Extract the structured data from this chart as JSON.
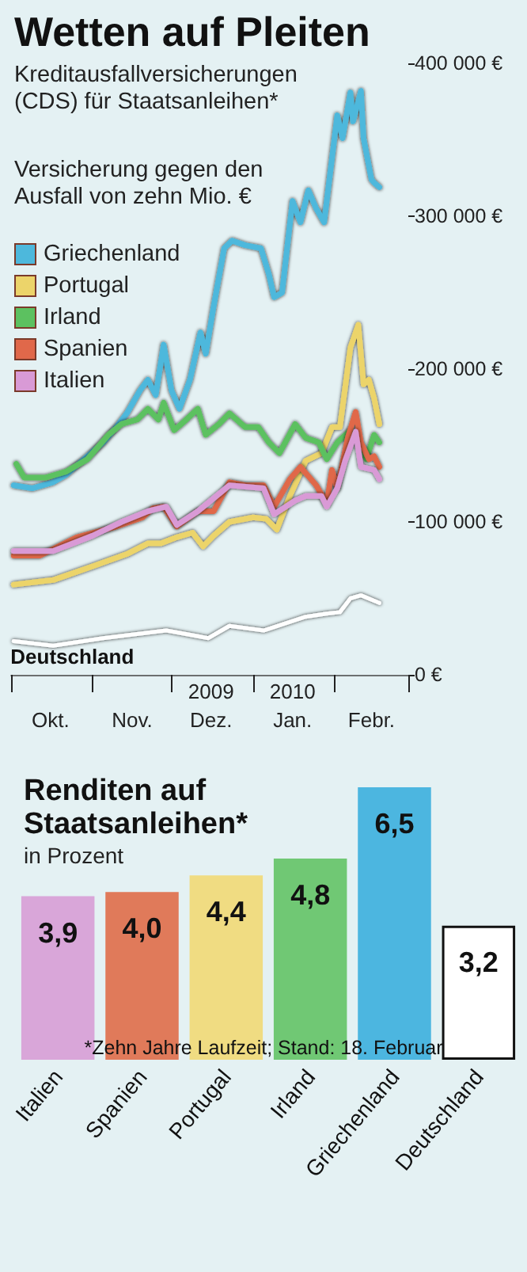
{
  "chart_data": [
    {
      "type": "line",
      "title": "Wetten auf Pleiten",
      "subtitle": "Kreditausfallversicherungen (CDS) für Staatsanleihen*",
      "ylabel": "Versicherung gegen den Ausfall von zehn Mio. €",
      "annotations": [
        "2009",
        "2010"
      ],
      "xticks": [
        {
          "value": "2009-10-01",
          "label": null
        },
        {
          "value": "2009-10-16",
          "label": "Okt."
        },
        {
          "value": "2009-11-01",
          "label": null
        },
        {
          "value": "2009-11-16",
          "label": "Nov."
        },
        {
          "value": "2009-12-01",
          "label": null
        },
        {
          "value": "2009-12-16",
          "label": "Dez."
        },
        {
          "value": "2010-01-01",
          "label": null
        },
        {
          "value": "2010-01-16",
          "label": "Jan."
        },
        {
          "value": "2010-02-01",
          "label": null
        },
        {
          "value": "2010-02-15",
          "label": "Febr."
        },
        {
          "value": "2010-03-01",
          "label": null
        }
      ],
      "xlim": [
        "2009-10-01",
        "2010-03-01"
      ],
      "ylim": [
        0,
        400000
      ],
      "yticks": [
        {
          "value": 0,
          "label": "0 €"
        },
        {
          "value": 100000,
          "label": "100 000 €"
        },
        {
          "value": 200000,
          "label": "200 000 €"
        },
        {
          "value": 300000,
          "label": "300 000 €"
        },
        {
          "value": 400000,
          "label": "400 000 €"
        }
      ],
      "legend": "top left",
      "series": [
        {
          "name": "Griechenland",
          "color": "#4db8dc",
          "x": [
            "2009-10-02",
            "2009-10-09",
            "2009-10-17",
            "2009-10-22",
            "2009-10-28",
            "2009-11-05",
            "2009-11-10",
            "2009-11-14",
            "2009-11-19",
            "2009-11-22",
            "2009-11-25",
            "2009-11-28",
            "2009-12-01",
            "2009-12-04",
            "2009-12-08",
            "2009-12-12",
            "2009-12-14",
            "2009-12-17",
            "2009-12-21",
            "2009-12-24",
            "2009-12-29",
            "2010-01-04",
            "2010-01-07",
            "2010-01-09",
            "2010-01-12",
            "2010-01-16",
            "2010-01-19",
            "2010-01-22",
            "2010-01-25",
            "2010-01-28",
            "2010-02-02",
            "2010-02-04",
            "2010-02-07",
            "2010-02-08",
            "2010-02-11",
            "2010-02-12",
            "2010-02-15",
            "2010-02-16",
            "2010-02-18"
          ],
          "values": [
            124000,
            122000,
            126000,
            131000,
            140000,
            152000,
            162000,
            171000,
            186000,
            193000,
            183000,
            216000,
            186000,
            174000,
            193000,
            224000,
            210000,
            241000,
            279000,
            284000,
            281000,
            279000,
            262000,
            247000,
            250000,
            310000,
            296000,
            317000,
            305000,
            296000,
            366000,
            351000,
            381000,
            362000,
            382000,
            351000,
            324000,
            322000,
            319000
          ]
        },
        {
          "name": "Portugal",
          "color": "#ecd46a",
          "x": [
            "2009-10-02",
            "2009-10-17",
            "2009-11-01",
            "2009-11-14",
            "2009-11-22",
            "2009-11-27",
            "2009-12-03",
            "2009-12-09",
            "2009-12-13",
            "2009-12-17",
            "2009-12-23",
            "2010-01-01",
            "2010-01-06",
            "2010-01-10",
            "2010-01-15",
            "2010-01-21",
            "2010-01-27",
            "2010-01-31",
            "2010-02-03",
            "2010-02-07",
            "2010-02-10",
            "2010-02-12",
            "2010-02-14",
            "2010-02-16",
            "2010-02-18"
          ],
          "values": [
            59000,
            62000,
            71000,
            79000,
            86000,
            86000,
            90000,
            93000,
            84000,
            91000,
            100000,
            103000,
            102000,
            95000,
            117000,
            140000,
            145000,
            162000,
            162000,
            214000,
            229000,
            190000,
            193000,
            181000,
            164000
          ]
        },
        {
          "name": "Irland",
          "color": "#5cc160",
          "x": [
            "2009-10-03",
            "2009-10-06",
            "2009-10-14",
            "2009-10-22",
            "2009-10-30",
            "2009-11-07",
            "2009-11-12",
            "2009-11-18",
            "2009-11-22",
            "2009-11-26",
            "2009-11-28",
            "2009-12-02",
            "2009-12-06",
            "2009-12-11",
            "2009-12-14",
            "2009-12-19",
            "2009-12-23",
            "2009-12-29",
            "2010-01-03",
            "2010-01-07",
            "2010-01-11",
            "2010-01-17",
            "2010-01-21",
            "2010-01-26",
            "2010-01-29",
            "2010-02-02",
            "2010-02-07",
            "2010-02-10",
            "2010-02-13",
            "2010-02-16",
            "2010-02-18"
          ],
          "values": [
            138000,
            129000,
            129000,
            133000,
            141000,
            157000,
            164000,
            167000,
            174000,
            167000,
            178000,
            160000,
            166000,
            174000,
            157000,
            164000,
            171000,
            162000,
            162000,
            152000,
            145000,
            164000,
            155000,
            152000,
            141000,
            152000,
            160000,
            152000,
            141000,
            157000,
            152000
          ]
        },
        {
          "name": "Spanien",
          "color": "#e0684a",
          "x": [
            "2009-10-02",
            "2009-10-12",
            "2009-10-26",
            "2009-11-10",
            "2009-11-20",
            "2009-11-24",
            "2009-11-28",
            "2009-12-03",
            "2009-12-11",
            "2009-12-17",
            "2009-12-23",
            "2009-12-29",
            "2010-01-05",
            "2010-01-09",
            "2010-01-15",
            "2010-01-19",
            "2010-01-25",
            "2010-01-29",
            "2010-01-31",
            "2010-02-02",
            "2010-02-06",
            "2010-02-09",
            "2010-02-11",
            "2010-02-14",
            "2010-02-16",
            "2010-02-18"
          ],
          "values": [
            78000,
            78000,
            90000,
            97000,
            103000,
            109000,
            110000,
            97000,
            107000,
            107000,
            126000,
            124000,
            124000,
            110000,
            128000,
            136000,
            124000,
            112000,
            134000,
            122000,
            155000,
            172000,
            152000,
            141000,
            143000,
            136000
          ]
        },
        {
          "name": "Italien",
          "color": "#d99ad6",
          "x": [
            "2009-10-02",
            "2009-10-17",
            "2009-11-01",
            "2009-11-12",
            "2009-11-22",
            "2009-11-29",
            "2009-12-03",
            "2009-12-11",
            "2009-12-23",
            "2010-01-05",
            "2010-01-09",
            "2010-01-17",
            "2010-01-21",
            "2010-01-27",
            "2010-01-29",
            "2010-02-02",
            "2010-02-05",
            "2010-02-09",
            "2010-02-11",
            "2010-02-16",
            "2010-02-18"
          ],
          "values": [
            81000,
            81000,
            91000,
            100000,
            107000,
            110000,
            98000,
            107000,
            124000,
            122000,
            105000,
            114000,
            117000,
            117000,
            110000,
            122000,
            140000,
            159000,
            136000,
            134000,
            128000
          ]
        },
        {
          "name": "Deutschland",
          "color": "#ffffff",
          "x": [
            "2009-10-02",
            "2009-10-17",
            "2009-11-05",
            "2009-11-29",
            "2009-12-15",
            "2009-12-23",
            "2010-01-05",
            "2010-01-21",
            "2010-01-29",
            "2010-02-03",
            "2010-02-07",
            "2010-02-11",
            "2010-02-18"
          ],
          "values": [
            22000,
            19000,
            24000,
            29000,
            24000,
            32000,
            29000,
            38000,
            40000,
            41000,
            50000,
            52000,
            47000
          ]
        }
      ]
    },
    {
      "type": "bar",
      "title": "Renditen auf Staatsanleihen*",
      "subtitle": "in Prozent",
      "annotations": [
        "*Zehn Jahre Laufzeit; Stand: 18. Februar"
      ],
      "categories": [
        "Italien",
        "Spanien",
        "Portugal",
        "Irland",
        "Griechenland",
        "Deutschland"
      ],
      "values": [
        3.9,
        4.0,
        4.4,
        4.8,
        6.5,
        3.2
      ],
      "value_labels": [
        "3,9",
        "4,0",
        "4,4",
        "4,8",
        "6,5",
        "3,2"
      ],
      "colors": [
        "#d9a6d9",
        "#e07a5a",
        "#f0dc82",
        "#70c874",
        "#4cb6e0",
        "#ffffff"
      ],
      "tick_labels": "x"
    }
  ]
}
